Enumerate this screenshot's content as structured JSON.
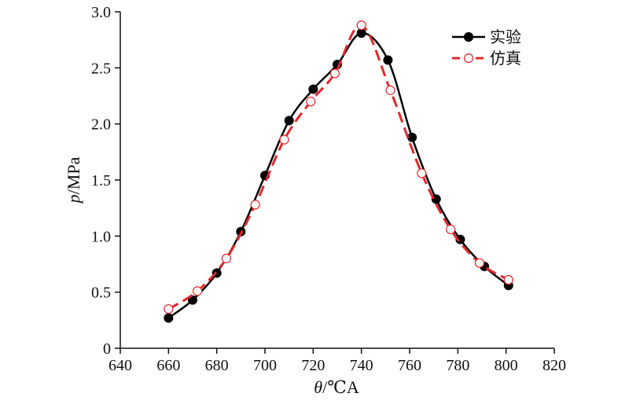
{
  "chart_data": {
    "type": "line",
    "xlabel_var": "θ",
    "xlabel_unit": "/℃A",
    "ylabel_var": "p",
    "ylabel_unit": "/MPa",
    "xlim": [
      640,
      820
    ],
    "ylim": [
      0,
      3.0
    ],
    "x_ticks": [
      "640",
      "660",
      "680",
      "700",
      "720",
      "740",
      "760",
      "780",
      "800",
      "820"
    ],
    "y_ticks": [
      "0",
      "0.5",
      "1.0",
      "1.5",
      "2.0",
      "2.5",
      "3.0"
    ],
    "grid": false,
    "legend_position": "top-right",
    "series": [
      {
        "name": "实验",
        "color": "#000000",
        "line_style": "solid",
        "marker": "filled-circle",
        "x": [
          660,
          670,
          680,
          690,
          700,
          710,
          720,
          730,
          740,
          751,
          761,
          771,
          781,
          791,
          801
        ],
        "y": [
          0.27,
          0.43,
          0.67,
          1.04,
          1.54,
          2.03,
          2.31,
          2.53,
          2.81,
          2.57,
          1.88,
          1.33,
          0.97,
          0.73,
          0.56
        ]
      },
      {
        "name": "仿真",
        "color": "#e0282e",
        "line_style": "dashed",
        "marker": "open-circle",
        "x": [
          660,
          672,
          684,
          696,
          708,
          719,
          729,
          740,
          752,
          765,
          777,
          789,
          801
        ],
        "y": [
          0.35,
          0.51,
          0.8,
          1.28,
          1.86,
          2.2,
          2.45,
          2.88,
          2.3,
          1.56,
          1.06,
          0.76,
          0.61
        ]
      }
    ]
  }
}
